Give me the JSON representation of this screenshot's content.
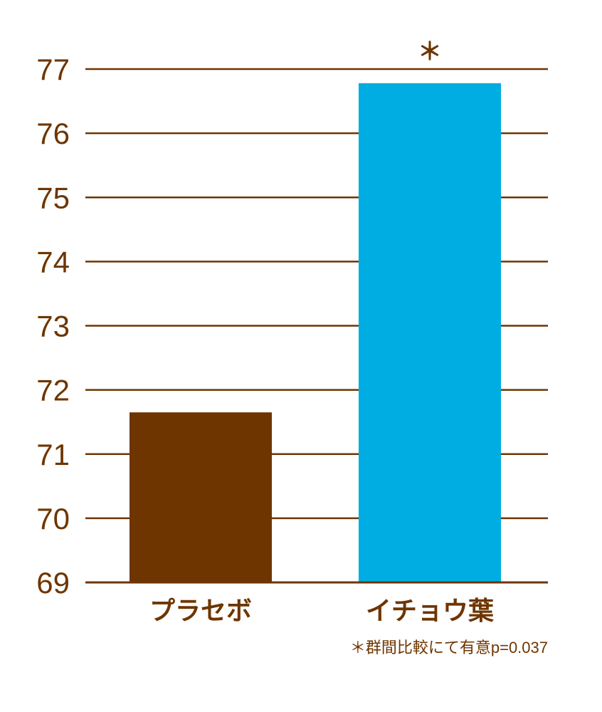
{
  "chart_data": {
    "type": "bar",
    "categories": [
      "プラセボ",
      "イチョウ葉"
    ],
    "values": [
      71.65,
      76.78
    ],
    "ylim": [
      69,
      77
    ],
    "yticks": [
      "69",
      "70",
      "71",
      "72",
      "73",
      "74",
      "75",
      "76",
      "77"
    ],
    "bar_colors": [
      "#6e3500",
      "#00ade2"
    ],
    "axis_color": "#6e3500",
    "text_color": "#6e3500",
    "significance_marker": "＊",
    "significance_category": "イチョウ葉",
    "grid": true
  },
  "footnote": "＊群間比較にて有意p=0.037"
}
